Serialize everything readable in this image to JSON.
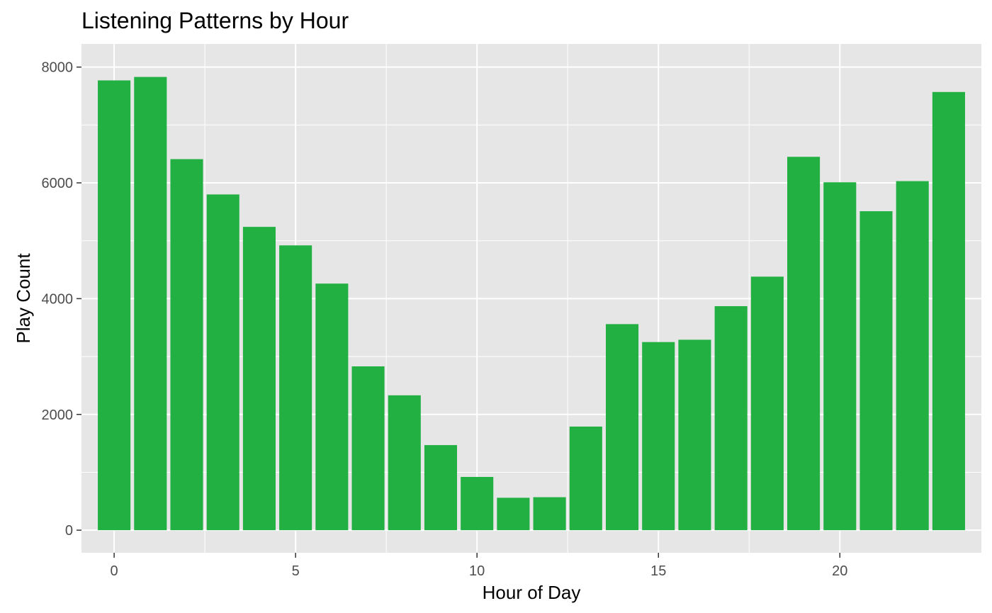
{
  "chart_data": {
    "type": "bar",
    "title": "Listening Patterns by Hour",
    "xlabel": "Hour of Day",
    "ylabel": "Play Count",
    "x": [
      0,
      1,
      2,
      3,
      4,
      5,
      6,
      7,
      8,
      9,
      10,
      11,
      12,
      13,
      14,
      15,
      16,
      17,
      18,
      19,
      20,
      21,
      22,
      23
    ],
    "values": [
      7770,
      7830,
      6410,
      5800,
      5240,
      4920,
      4260,
      2830,
      2330,
      1470,
      920,
      560,
      570,
      1790,
      3560,
      3250,
      3290,
      3870,
      4380,
      6450,
      6010,
      5510,
      6030,
      7570
    ],
    "xlim": [
      -0.9,
      23.9
    ],
    "ylim": [
      -390,
      8400
    ],
    "x_ticks": [
      0,
      5,
      10,
      15,
      20
    ],
    "y_ticks": [
      0,
      2000,
      4000,
      6000,
      8000
    ],
    "x_tick_labels": [
      "0",
      "5",
      "10",
      "15",
      "20"
    ],
    "y_tick_labels": [
      "0",
      "2000",
      "4000",
      "6000",
      "8000"
    ],
    "grid": true,
    "colors": {
      "bar": "#22b043",
      "panel": "#e6e6e6",
      "grid": "#ffffff",
      "tick_text": "#4d4d4d",
      "tick_mark": "#333333"
    }
  }
}
